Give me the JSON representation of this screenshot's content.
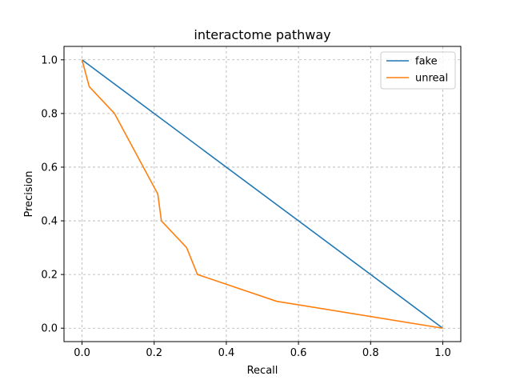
{
  "chart_data": {
    "type": "line",
    "title": "interactome pathway",
    "xlabel": "Recall",
    "ylabel": "Precision",
    "xlim": [
      -0.05,
      1.05
    ],
    "ylim": [
      -0.05,
      1.05
    ],
    "xticks": [
      0.0,
      0.2,
      0.4,
      0.6,
      0.8,
      1.0
    ],
    "yticks": [
      0.0,
      0.2,
      0.4,
      0.6,
      0.8,
      1.0
    ],
    "xtick_labels": [
      "0.0",
      "0.2",
      "0.4",
      "0.6",
      "0.8",
      "1.0"
    ],
    "ytick_labels": [
      "0.0",
      "0.2",
      "0.4",
      "0.6",
      "0.8",
      "1.0"
    ],
    "grid": true,
    "legend_position": "top-right",
    "series": [
      {
        "name": "fake",
        "color": "#1f77b4",
        "x": [
          0.0,
          1.0
        ],
        "y": [
          1.0,
          0.0
        ]
      },
      {
        "name": "unreal",
        "color": "#ff7f0e",
        "x": [
          0.0,
          0.02,
          0.09,
          0.21,
          0.22,
          0.29,
          0.32,
          0.54,
          1.0
        ],
        "y": [
          1.0,
          0.9,
          0.8,
          0.5,
          0.4,
          0.3,
          0.2,
          0.1,
          0.0
        ]
      }
    ]
  }
}
